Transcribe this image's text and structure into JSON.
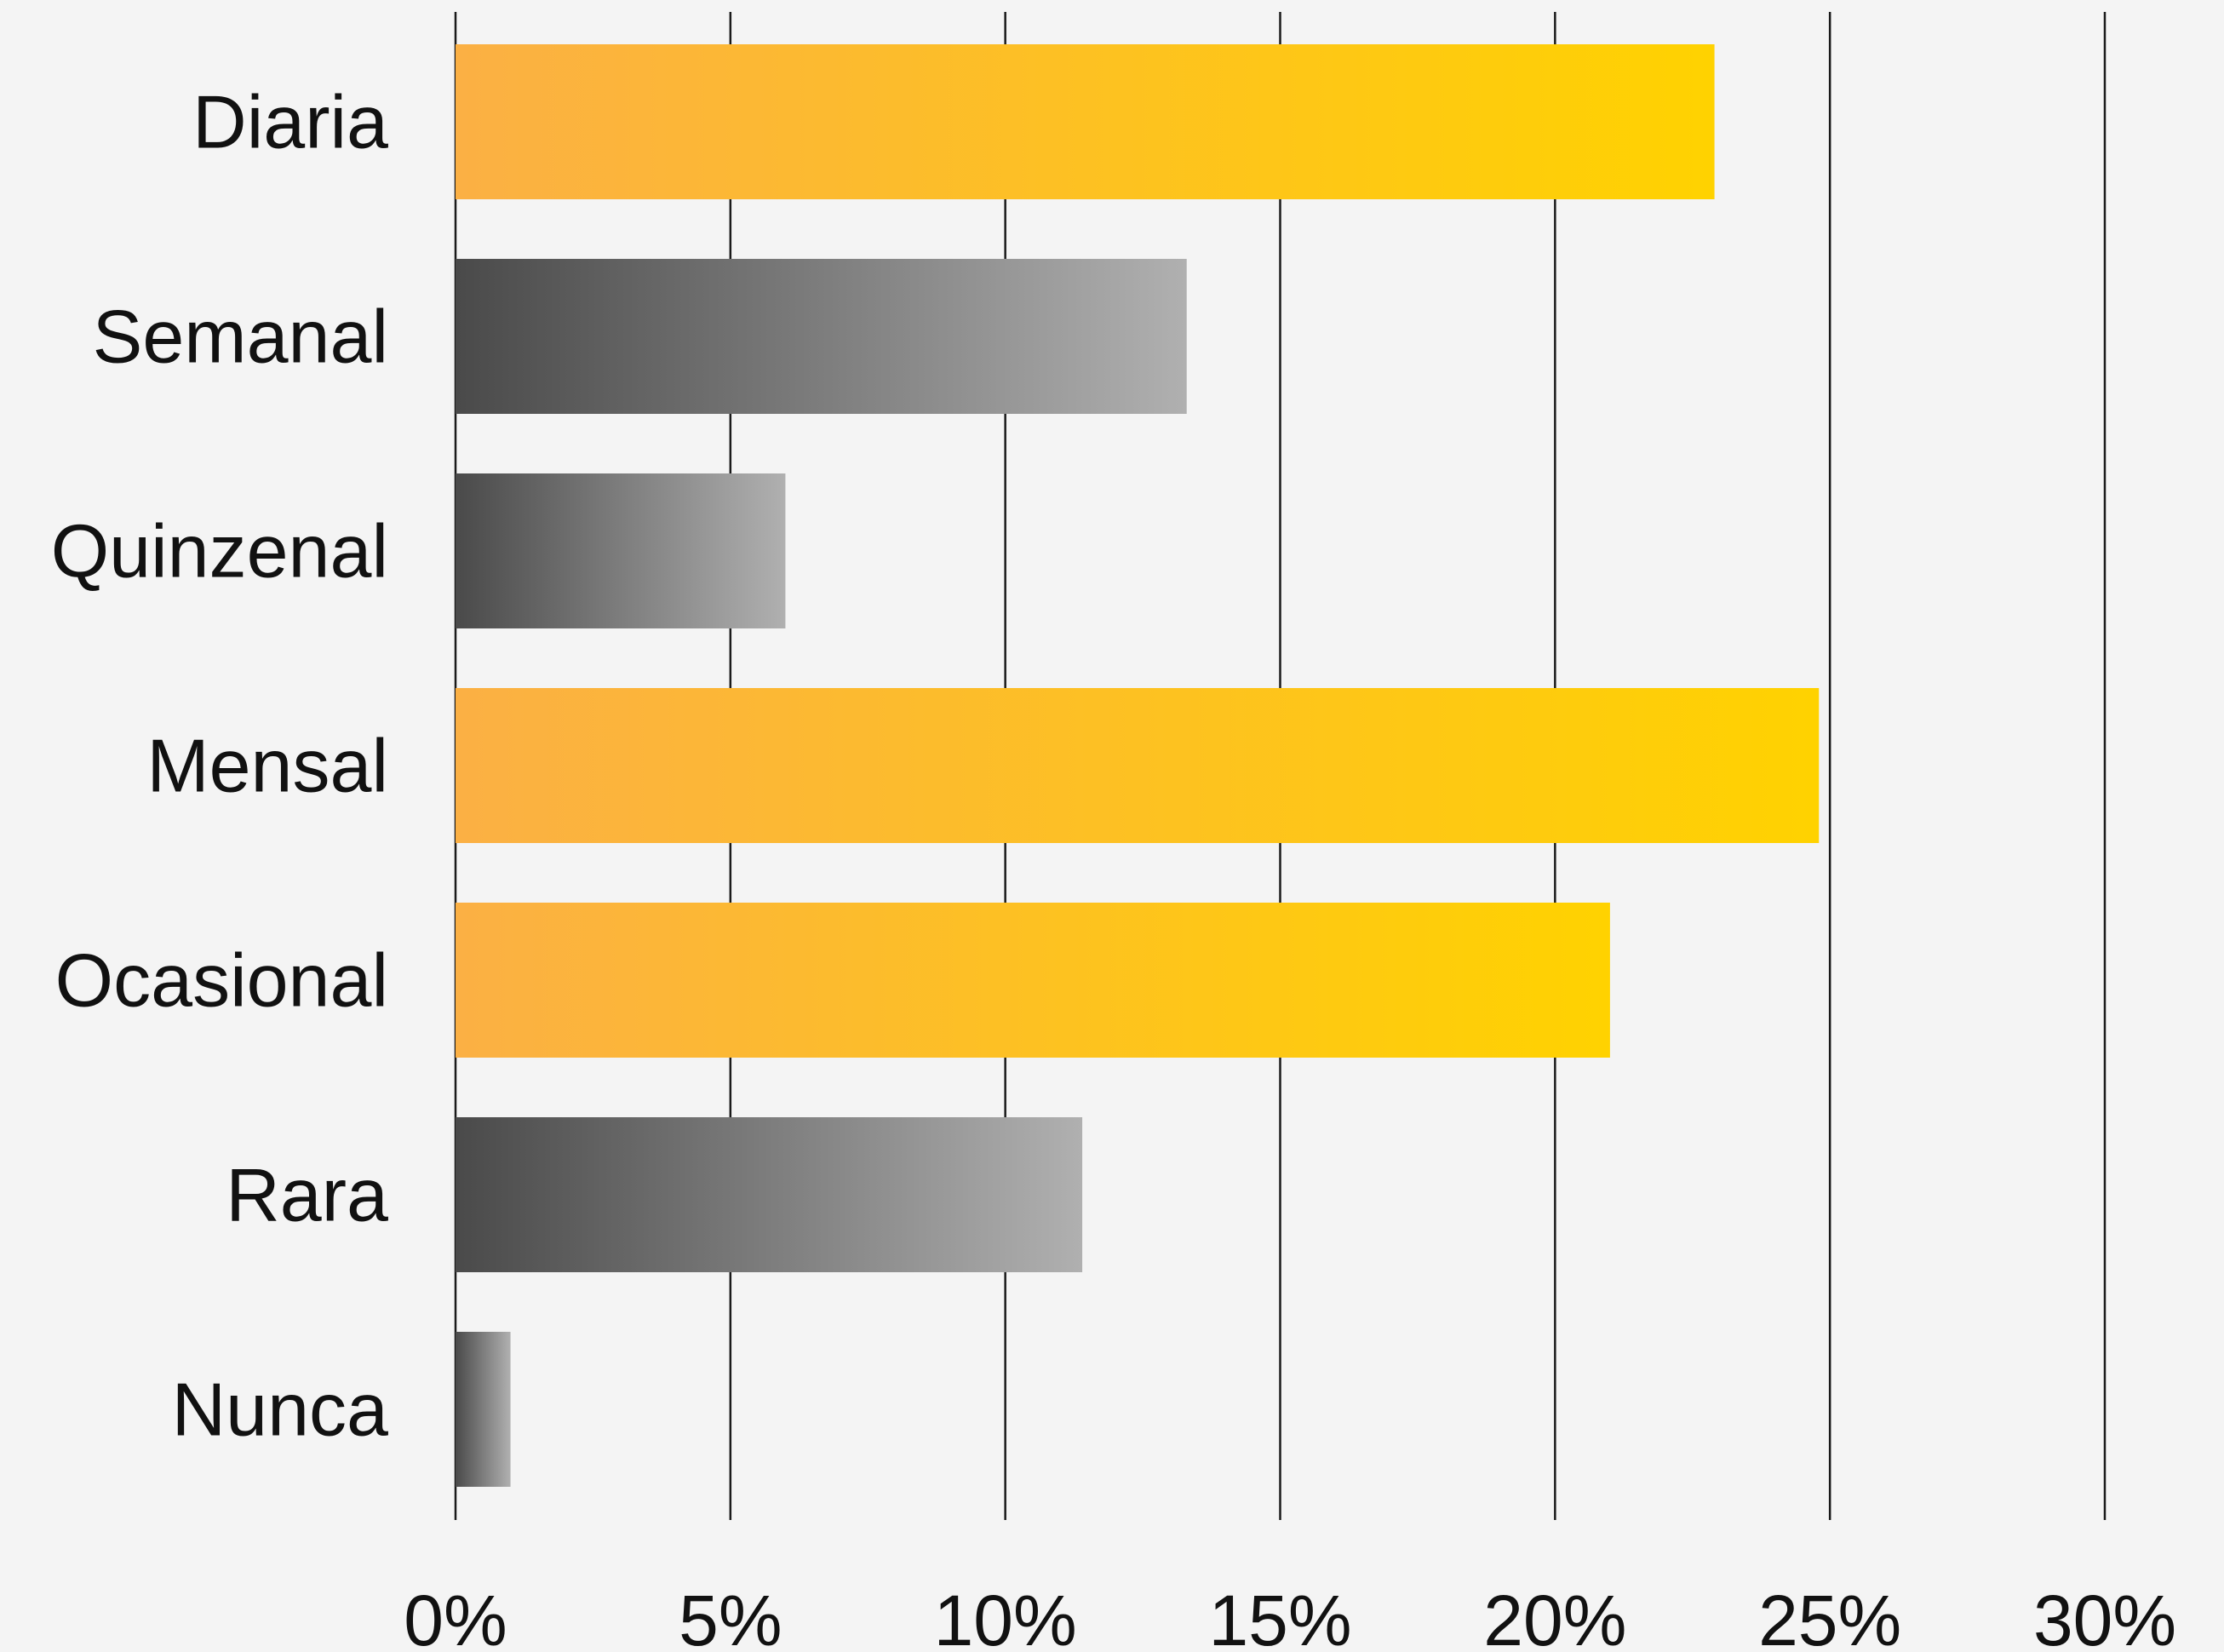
{
  "chart_data": {
    "type": "bar",
    "orientation": "horizontal",
    "title": "",
    "xlabel": "",
    "ylabel": "",
    "categories": [
      "Diaria",
      "Semanal",
      "Quinzenal",
      "Mensal",
      "Ocasional",
      "Rara",
      "Nunca"
    ],
    "values": [
      22.9,
      13.3,
      6.0,
      24.8,
      21.0,
      11.4,
      1.0
    ],
    "bar_styles": [
      "highlight",
      "muted",
      "muted",
      "highlight",
      "highlight",
      "muted",
      "muted"
    ],
    "xlim": [
      0,
      30
    ],
    "xticks": [
      0,
      5,
      10,
      15,
      20,
      25,
      30
    ],
    "xtick_labels": [
      "0%",
      "5%",
      "10%",
      "15%",
      "20%",
      "25%",
      "30%"
    ],
    "grid": true,
    "legend": "none",
    "colors": {
      "background": "#f4f4f4",
      "highlight_gradient": [
        "#fbb044",
        "#ffd200"
      ],
      "muted_gradient": [
        "#4a4a4a",
        "#b0b0b0"
      ],
      "gridline": "#1a1a1a",
      "text": "#111111"
    }
  }
}
